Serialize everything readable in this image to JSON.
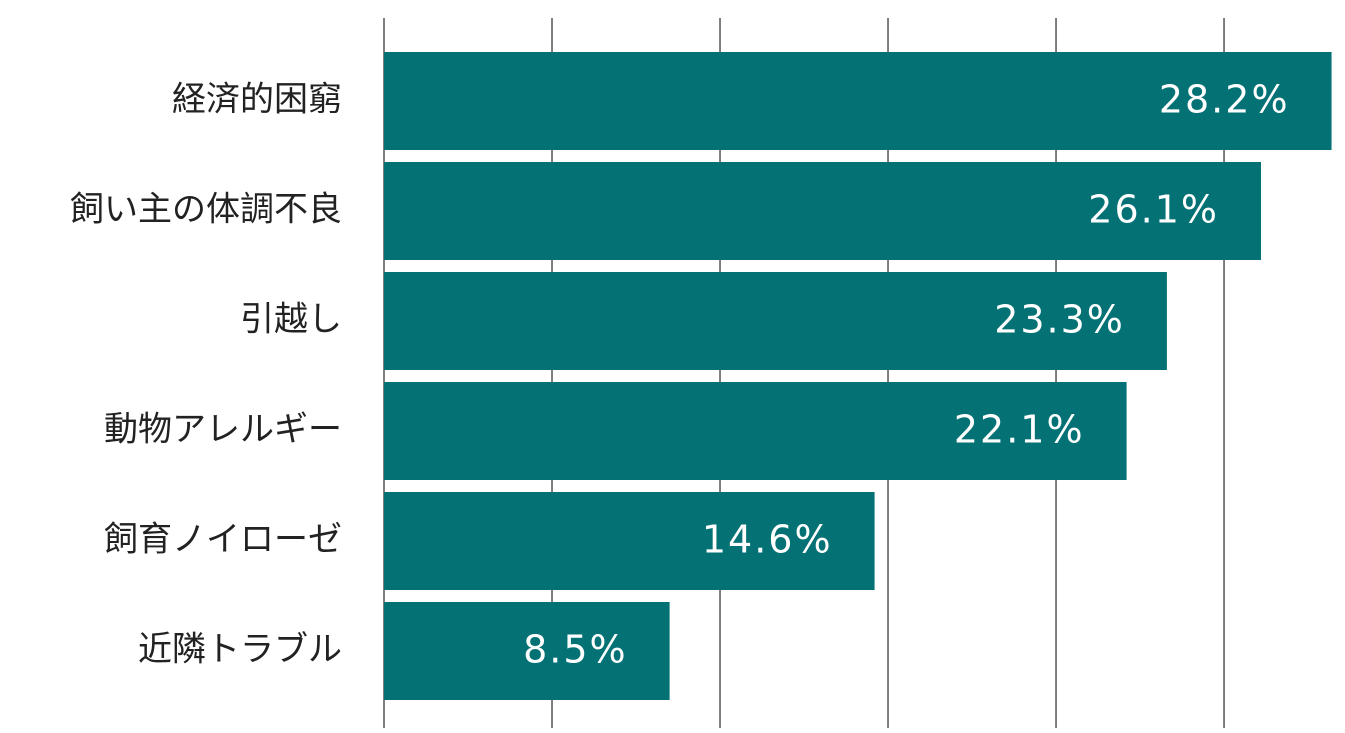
{
  "chart_data": {
    "type": "barh",
    "categories": [
      "経済的困窮",
      "飼い主の体調不良",
      "引越し",
      "動物アレルギー",
      "飼育ノイローゼ",
      "近隣トラブル"
    ],
    "values": [
      28.2,
      26.1,
      23.3,
      22.1,
      14.6,
      8.5
    ],
    "value_labels": [
      "28.2%",
      "26.1%",
      "23.3%",
      "22.1%",
      "14.6%",
      "8.5%"
    ],
    "color": "#047275",
    "xlim": [
      0,
      28.6
    ],
    "xticks": [
      0,
      5,
      10,
      15,
      20,
      25
    ],
    "grid": true
  }
}
